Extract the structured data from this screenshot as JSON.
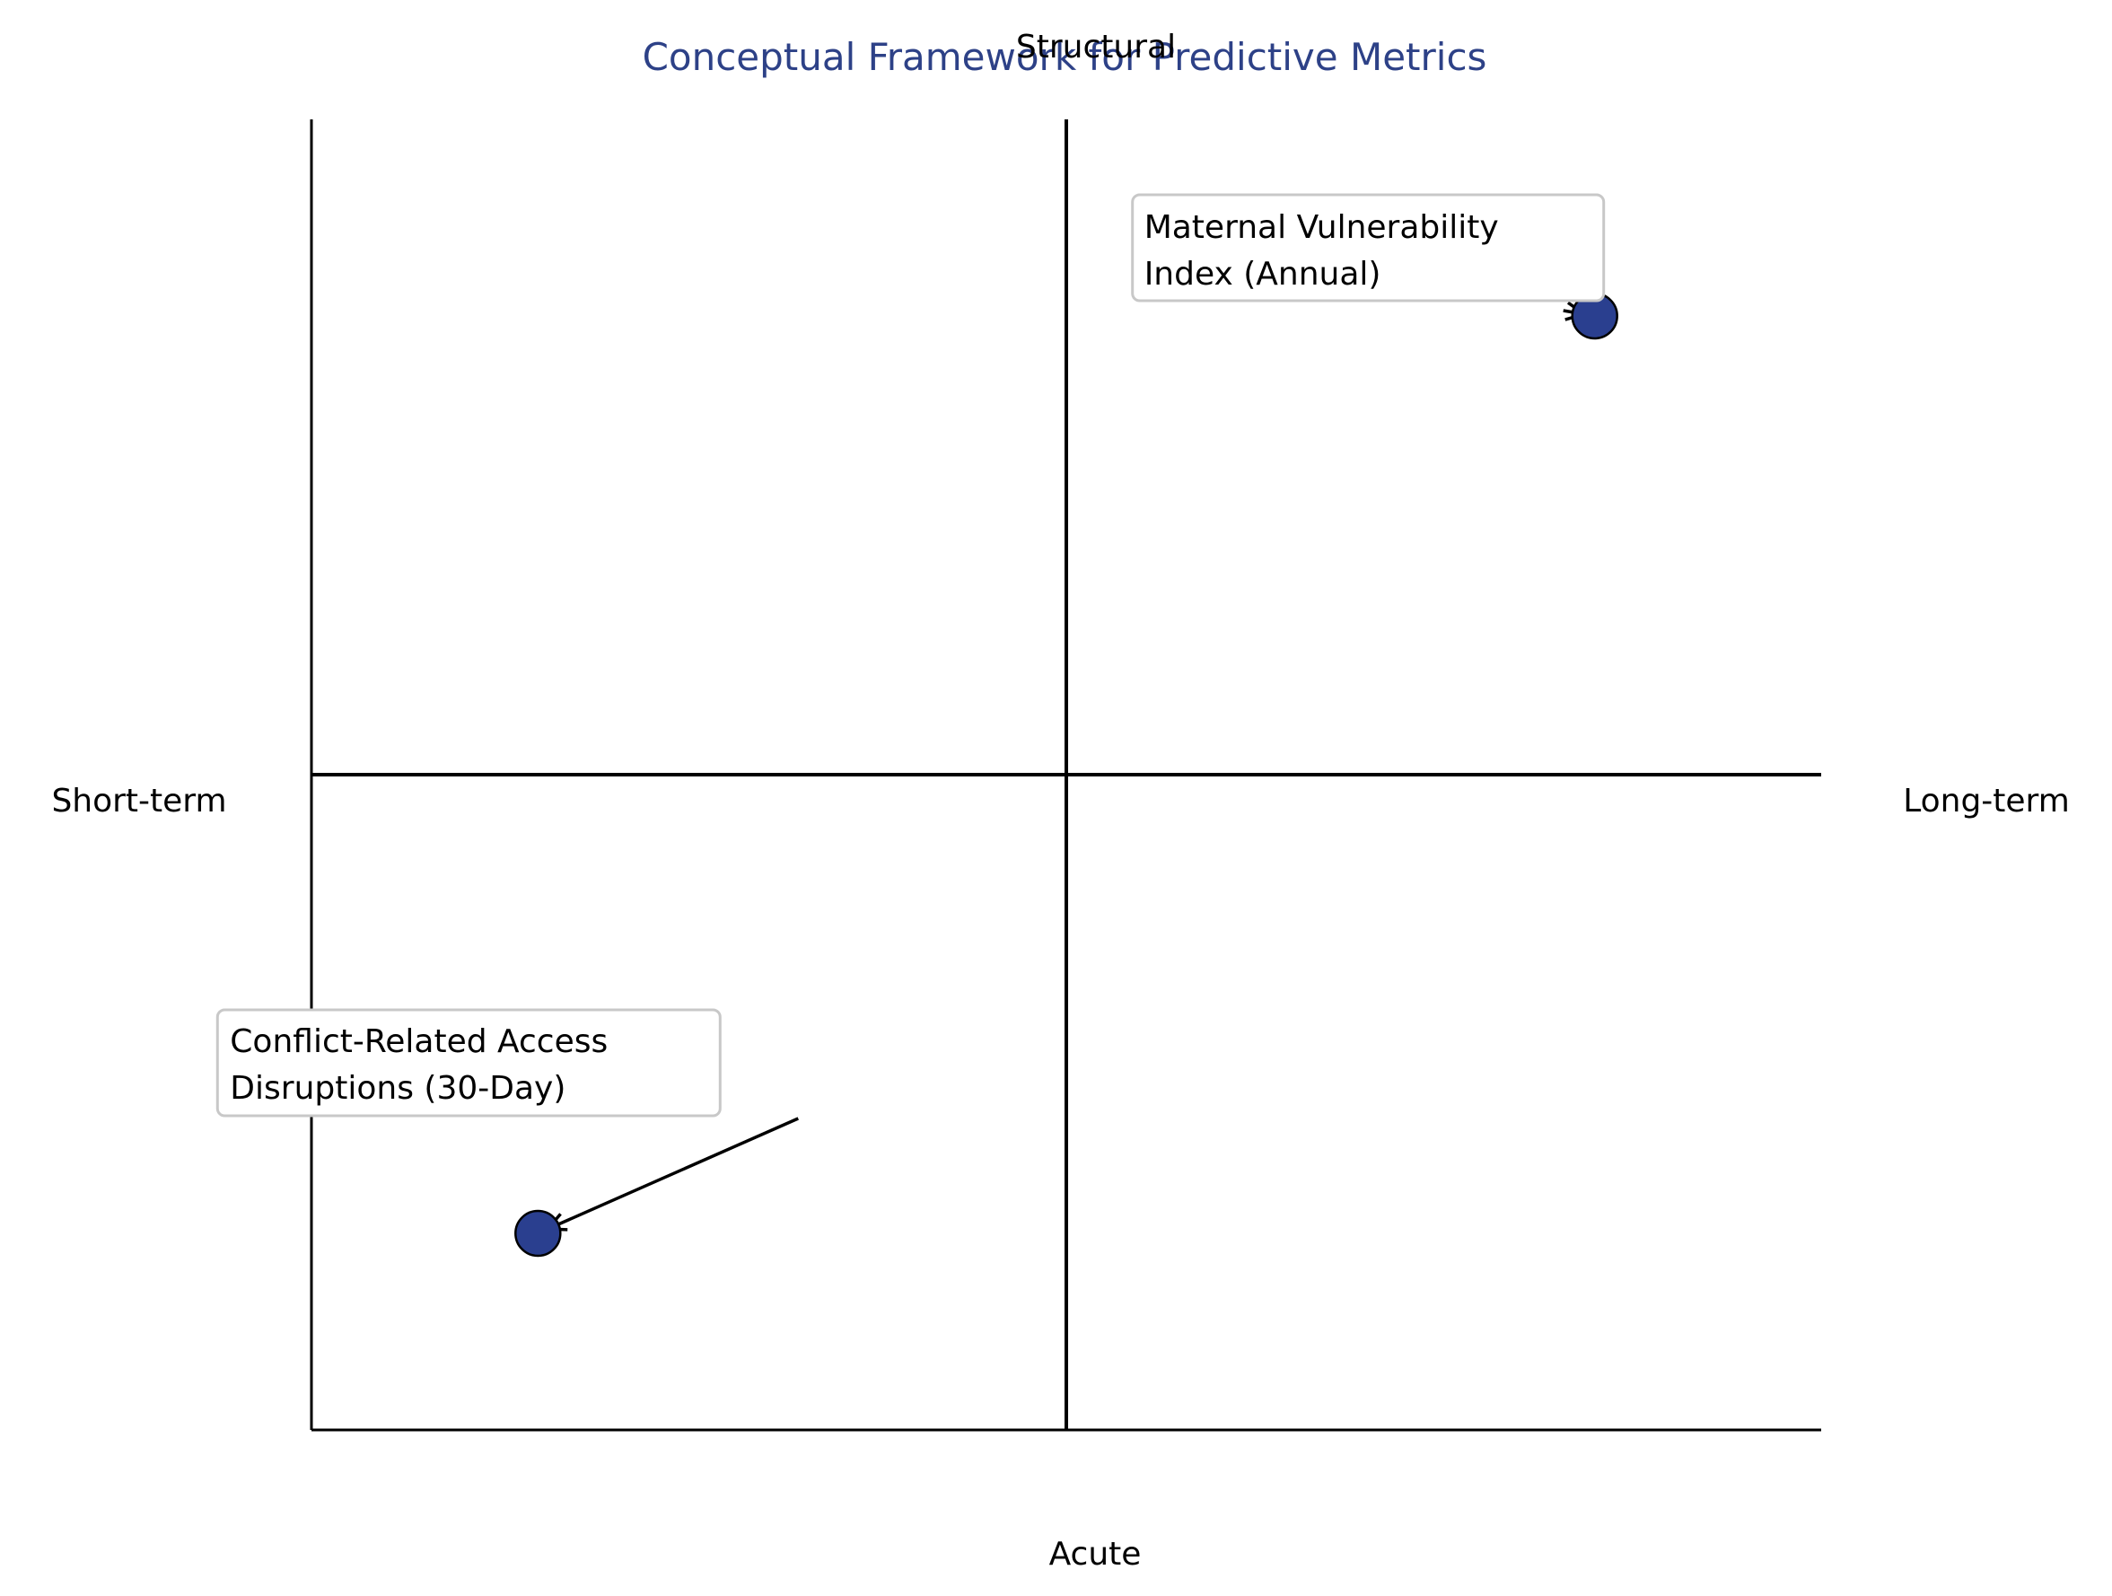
{
  "chart_data": {
    "type": "scatter",
    "title": "Conceptual Framework for Predictive Metrics",
    "axis_labels": {
      "top": "Structural",
      "bottom": "Acute",
      "left": "Short-term",
      "right": "Long-term"
    },
    "xlim": [
      0,
      1
    ],
    "ylim": [
      0,
      1
    ],
    "divider": {
      "x": 0.5,
      "y": 0.5
    },
    "grid": false,
    "points": [
      {
        "label_lines": [
          "Maternal Vulnerability",
          "Index (Annual)"
        ],
        "x": 0.85,
        "y": 0.85
      },
      {
        "label_lines": [
          "Conflict-Related Access",
          "Disruptions (30-Day)"
        ],
        "x": 0.15,
        "y": 0.15
      }
    ]
  },
  "colors": {
    "title": "#2d4187",
    "point_fill": "#2a3f8f",
    "point_edge": "#000000",
    "axis": "#000000",
    "annotation_box_edge": "#c8c8c8"
  }
}
